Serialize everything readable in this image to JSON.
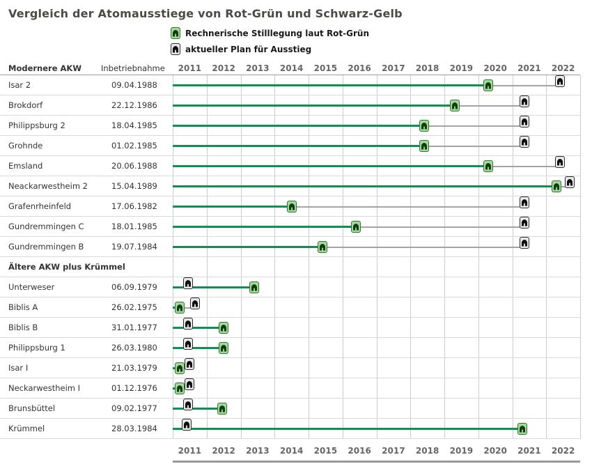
{
  "title": "Vergleich der Atomausstiege von Rot-Grün und Schwarz-Gelb",
  "legend": {
    "items": [
      {
        "icon": "green-plant-icon",
        "label": "Rechnerische Stilllegung laut Rot-Grün"
      },
      {
        "icon": "dark-plant-icon",
        "label": "aktueller Plan für Ausstieg"
      }
    ]
  },
  "header": {
    "commissioning_label": "Inbetriebnahme"
  },
  "colors": {
    "green_line": "#0c9150",
    "green_marker_bg": "#a6d89e",
    "green_marker_border": "#2a7a2a",
    "green_marker_dome": "#123c12",
    "dark_marker_bg": "#e9e9e9",
    "dark_marker_border": "#2b2b2b",
    "dark_marker_dome": "#0f0f0f",
    "gray_line": "#a3a3a3",
    "gridline": "#cccccc",
    "axis_line": "#999999"
  },
  "chart_data": {
    "type": "timeline",
    "title": "Vergleich der Atomausstiege von Rot-Grün und Schwarz-Gelb",
    "x_axis": {
      "years": [
        "2011",
        "2012",
        "2013",
        "2014",
        "2015",
        "2016",
        "2017",
        "2018",
        "2019",
        "2020",
        "2021",
        "2022"
      ],
      "range": [
        2011,
        2023
      ]
    },
    "series_meaning": {
      "rot_gruen": "Rechnerische Stilllegung laut Rot-Grün (green marker)",
      "plan": "aktueller Plan für Ausstieg (dark marker)"
    },
    "sections": [
      {
        "label": "Modernere AKW",
        "rows": [
          {
            "name": "Isar 2",
            "inbetriebnahme": "09.04.1988",
            "rot_gruen": 2020.3,
            "plan": 2022.4
          },
          {
            "name": "Brokdorf",
            "inbetriebnahme": "22.12.1986",
            "rot_gruen": 2019.3,
            "plan": 2021.35
          },
          {
            "name": "Philippsburg 2",
            "inbetriebnahme": "18.04.1985",
            "rot_gruen": 2018.4,
            "plan": 2021.35
          },
          {
            "name": "Grohnde",
            "inbetriebnahme": "01.02.1985",
            "rot_gruen": 2018.4,
            "plan": 2021.35
          },
          {
            "name": "Emsland",
            "inbetriebnahme": "20.06.1988",
            "rot_gruen": 2020.3,
            "plan": 2022.4
          },
          {
            "name": "Neackarwestheim 2",
            "inbetriebnahme": "15.04.1989",
            "rot_gruen": 2022.3,
            "plan": 2022.7
          },
          {
            "name": "Grafenrheinfeld",
            "inbetriebnahme": "17.06.1982",
            "rot_gruen": 2014.5,
            "plan": 2021.35
          },
          {
            "name": "Gundremmingen C",
            "inbetriebnahme": "18.01.1985",
            "rot_gruen": 2016.4,
            "plan": 2021.35
          },
          {
            "name": "Gundremmingen B",
            "inbetriebnahme": "19.07.1984",
            "rot_gruen": 2015.4,
            "plan": 2021.35
          }
        ]
      },
      {
        "label": "Ältere AKW plus Krümmel",
        "rows": [
          {
            "name": "Unterweser",
            "inbetriebnahme": "06.09.1979",
            "rot_gruen": 2013.4,
            "plan": 2011.45
          },
          {
            "name": "Biblis A",
            "inbetriebnahme": "26.02.1975",
            "rot_gruen": 2011.2,
            "plan": 2011.65
          },
          {
            "name": "Biblis B",
            "inbetriebnahme": "31.01.1977",
            "rot_gruen": 2012.5,
            "plan": 2011.45
          },
          {
            "name": "Philippsburg 1",
            "inbetriebnahme": "26.03.1980",
            "rot_gruen": 2012.5,
            "plan": 2011.45
          },
          {
            "name": "Isar I",
            "inbetriebnahme": "21.03.1979",
            "rot_gruen": 2011.2,
            "plan": 2011.5
          },
          {
            "name": "Neckarwestheim I",
            "inbetriebnahme": "01.12.1976",
            "rot_gruen": 2011.2,
            "plan": 2011.5
          },
          {
            "name": "Brunsbüttel",
            "inbetriebnahme": "09.02.1977",
            "rot_gruen": 2012.45,
            "plan": 2011.45
          },
          {
            "name": "Krümmel",
            "inbetriebnahme": "28.03.1984",
            "rot_gruen": 2021.3,
            "plan": 2011.4
          }
        ]
      }
    ]
  }
}
